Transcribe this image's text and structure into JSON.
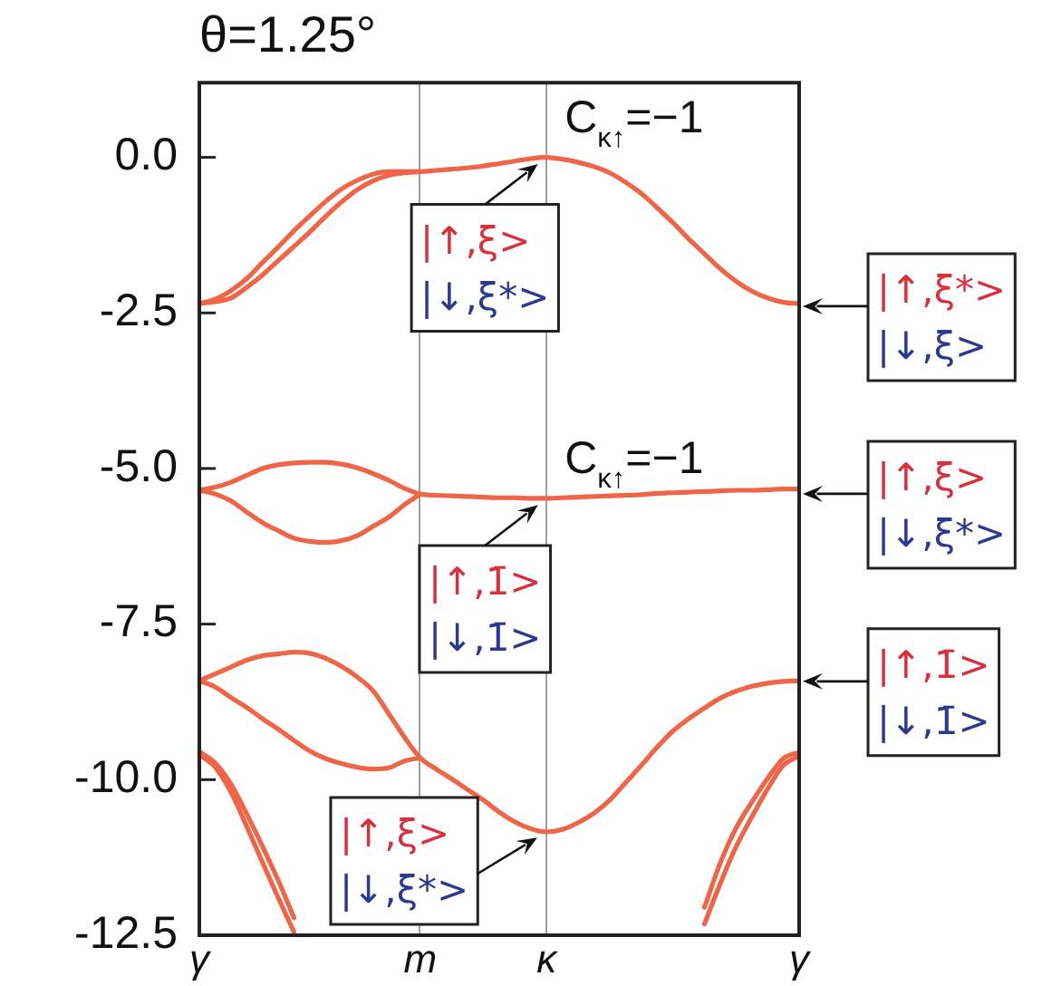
{
  "chart_data": {
    "type": "line",
    "title": "θ=1.25°",
    "categories": [
      "γ",
      null,
      null,
      null,
      null,
      null,
      null,
      null,
      null,
      null,
      null,
      null,
      null,
      null,
      "m",
      null,
      null,
      null,
      null,
      null,
      null,
      null,
      "κ",
      null,
      null,
      null,
      null,
      null,
      null,
      null,
      null,
      null,
      null,
      null,
      null,
      null,
      null,
      null,
      "γ"
    ],
    "ylim": [
      -12.5,
      1.2
    ],
    "yticks": [
      {
        "value": 0,
        "label": "0.0"
      },
      -2.5,
      {
        "value": -5,
        "label": "-5.0"
      },
      -7.5,
      {
        "value": -10,
        "label": "-10.0"
      },
      -12.5
    ],
    "grid": "x",
    "series": [
      {
        "color": "#ef6548",
        "values": [
          -2.35,
          -2.28,
          -2.14,
          -1.95,
          -1.69,
          -1.44,
          -1.18,
          -0.94,
          -0.71,
          -0.51,
          -0.37,
          -0.27,
          -0.23,
          -0.23,
          -0.23,
          -0.21,
          -0.19,
          -0.17,
          -0.14,
          -0.1,
          -0.06,
          -0.02,
          0.0,
          -0.03,
          -0.08,
          -0.15,
          -0.25,
          -0.4,
          -0.58,
          -0.81,
          -1.05,
          -1.31,
          -1.55,
          -1.79,
          -1.99,
          -2.15,
          -2.26,
          -2.33,
          -2.35
        ]
      },
      {
        "color": "#ef6548",
        "values": [
          -2.35,
          -2.32,
          -2.26,
          -2.09,
          -1.89,
          -1.66,
          -1.43,
          -1.2,
          -0.95,
          -0.72,
          -0.52,
          -0.38,
          -0.29,
          -0.25,
          -0.23,
          null,
          null,
          null,
          null,
          null,
          null,
          null,
          null,
          null,
          null,
          null,
          null,
          null,
          null,
          null,
          null,
          null,
          null,
          null,
          null,
          null,
          null,
          null,
          null
        ]
      },
      {
        "color": "#ef6548",
        "values": [
          -5.35,
          -5.3,
          -5.22,
          -5.11,
          -5.0,
          -4.94,
          -4.91,
          -4.9,
          -4.9,
          -4.93,
          -4.99,
          -5.08,
          -5.19,
          -5.32,
          -5.41,
          -5.43,
          -5.44,
          -5.45,
          -5.46,
          -5.47,
          -5.47,
          -5.48,
          -5.48,
          -5.47,
          -5.46,
          -5.45,
          -5.44,
          -5.43,
          -5.42,
          -5.4,
          -5.39,
          -5.38,
          -5.37,
          -5.36,
          -5.35,
          -5.35,
          -5.34,
          -5.33,
          -5.33
        ]
      },
      {
        "color": "#ef6548",
        "values": [
          -5.35,
          -5.41,
          -5.52,
          -5.7,
          -5.87,
          -6.0,
          -6.12,
          -6.17,
          -6.19,
          -6.16,
          -6.08,
          -5.93,
          -5.78,
          -5.58,
          -5.41,
          null,
          null,
          null,
          null,
          null,
          null,
          null,
          null,
          null,
          null,
          null,
          null,
          null,
          null,
          null,
          null,
          null,
          null,
          null,
          null,
          null,
          null,
          null,
          null
        ]
      },
      {
        "color": "#ef6548",
        "values": [
          -8.41,
          -8.3,
          -8.19,
          -8.08,
          -8.01,
          -7.98,
          -7.95,
          -7.97,
          -8.05,
          -8.18,
          -8.35,
          -8.57,
          -8.94,
          -9.32,
          -9.65,
          -9.83,
          -9.99,
          -10.16,
          -10.33,
          -10.52,
          -10.68,
          -10.79,
          -10.84,
          -10.8,
          -10.69,
          -10.54,
          -10.33,
          -10.05,
          -9.77,
          -9.48,
          -9.22,
          -9.02,
          -8.85,
          -8.69,
          -8.58,
          -8.5,
          -8.45,
          -8.42,
          -8.41
        ]
      },
      {
        "color": "#ef6548",
        "values": [
          -8.41,
          -8.51,
          -8.68,
          -8.84,
          -9.02,
          -9.19,
          -9.37,
          -9.54,
          -9.66,
          -9.74,
          -9.8,
          -9.83,
          -9.81,
          -9.7,
          -9.65,
          null,
          null,
          null,
          null,
          null,
          null,
          null,
          null,
          null,
          null,
          null,
          null,
          null,
          null,
          null,
          null,
          null,
          null,
          null,
          null,
          null,
          null,
          null,
          null
        ]
      },
      {
        "color": "#ef6548",
        "values": [
          -9.55,
          -9.73,
          -10.07,
          -10.55,
          -11.07,
          -11.62,
          -12.22,
          null,
          null,
          null,
          null,
          null,
          null,
          null,
          null,
          null,
          null,
          null,
          null,
          null,
          null,
          null,
          null,
          null,
          null,
          null,
          null,
          null,
          null,
          null,
          null,
          null,
          null,
          null,
          null,
          null,
          null,
          null,
          null
        ]
      },
      {
        "color": "#ef6548",
        "values": [
          -9.6,
          -9.8,
          -10.2,
          -10.75,
          -11.33,
          -11.9,
          -12.45,
          null,
          null,
          null,
          null,
          null,
          null,
          null,
          null,
          null,
          null,
          null,
          null,
          null,
          null,
          null,
          null,
          null,
          null,
          null,
          null,
          null,
          null,
          null,
          null,
          null,
          null,
          null,
          null,
          null,
          null,
          null,
          null
        ]
      },
      {
        "color": "#ef6548",
        "values": [
          null,
          null,
          null,
          null,
          null,
          null,
          null,
          null,
          null,
          null,
          null,
          null,
          null,
          null,
          null,
          null,
          null,
          null,
          null,
          null,
          null,
          null,
          null,
          null,
          null,
          null,
          null,
          null,
          null,
          null,
          null,
          null,
          -12.05,
          -11.34,
          -10.78,
          -10.36,
          -9.98,
          -9.66,
          -9.56
        ]
      },
      {
        "color": "#ef6548",
        "values": [
          null,
          null,
          null,
          null,
          null,
          null,
          null,
          null,
          null,
          null,
          null,
          null,
          null,
          null,
          null,
          null,
          null,
          null,
          null,
          null,
          null,
          null,
          null,
          null,
          null,
          null,
          null,
          null,
          null,
          null,
          null,
          null,
          -12.32,
          -11.67,
          -11.08,
          -10.6,
          -10.15,
          -9.77,
          -9.62
        ]
      }
    ],
    "annotations": [
      {
        "text": "C$_{κ↑}$=−1",
        "x": "κ",
        "y": 0.0
      },
      {
        "text": "|↑,ξ>\n|↓,ξ*>",
        "x": "κ",
        "y": 0.0
      },
      {
        "text": "C$_{κ↑}$=−1",
        "x": "κ",
        "y": -5.48
      },
      {
        "text": "|↑,1̄>\n|↓,1̄>",
        "x": "κ",
        "y": -5.48
      },
      {
        "text": "|↑,ξ>\n|↓,ξ*>",
        "x": "κ",
        "y": -10.84
      },
      "|↑,ξ*>\n|↓,ξ>",
      "|↑,ξ>\n|↓,ξ*>",
      "|↑,1̄>\n|↓,1̄>"
    ]
  }
}
